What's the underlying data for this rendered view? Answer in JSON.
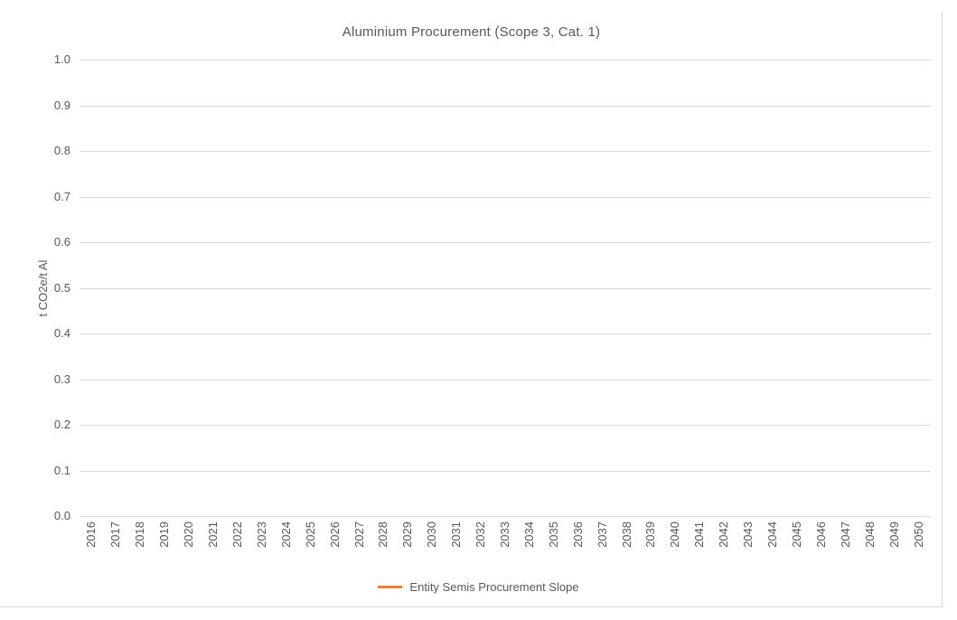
{
  "chart": {
    "title": "Aluminium Procurement (Scope 3, Cat. 1)",
    "ylabel": "t CO2e/t Al"
  },
  "legend": {
    "items": [
      {
        "label": "Entity Semis Procurement Slope",
        "color": "#ED7D31"
      }
    ]
  },
  "colors": {
    "gridline": "#D9D9D9",
    "frame_border": "#D9D9D9",
    "axis_text": "#595959",
    "title_text": "#595959",
    "series_orange": "#ED7D31"
  },
  "chart_data": {
    "type": "line",
    "title": "Aluminium Procurement (Scope 3, Cat. 1)",
    "xlabel": "",
    "ylabel": "t CO2e/t Al",
    "x": [
      2016,
      2017,
      2018,
      2019,
      2020,
      2021,
      2022,
      2023,
      2024,
      2025,
      2026,
      2027,
      2028,
      2029,
      2030,
      2031,
      2032,
      2033,
      2034,
      2035,
      2036,
      2037,
      2038,
      2039,
      2040,
      2041,
      2042,
      2043,
      2044,
      2045,
      2046,
      2047,
      2048,
      2049,
      2050
    ],
    "ylim": [
      0.0,
      1.0
    ],
    "yticks": [
      0.0,
      0.1,
      0.2,
      0.3,
      0.4,
      0.5,
      0.6,
      0.7,
      0.8,
      0.9,
      1.0
    ],
    "ytick_labels": [
      "0.0",
      "0.1",
      "0.2",
      "0.3",
      "0.4",
      "0.5",
      "0.6",
      "0.7",
      "0.8",
      "0.9",
      "1.0"
    ],
    "grid": true,
    "legend_position": "bottom",
    "series": [
      {
        "name": "Entity Semis Procurement Slope",
        "color": "#ED7D31",
        "values": []
      }
    ]
  }
}
